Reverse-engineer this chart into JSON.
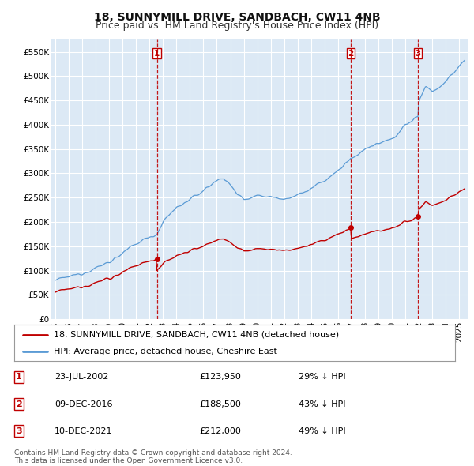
{
  "title": "18, SUNNYMILL DRIVE, SANDBACH, CW11 4NB",
  "subtitle": "Price paid vs. HM Land Registry's House Price Index (HPI)",
  "ylim": [
    0,
    575000
  ],
  "yticks": [
    0,
    50000,
    100000,
    150000,
    200000,
    250000,
    300000,
    350000,
    400000,
    450000,
    500000,
    550000
  ],
  "ytick_labels": [
    "£0",
    "£50K",
    "£100K",
    "£150K",
    "£200K",
    "£250K",
    "£300K",
    "£350K",
    "£400K",
    "£450K",
    "£500K",
    "£550K"
  ],
  "background_color": "#ffffff",
  "plot_bg_color": "#dce9f5",
  "grid_color": "#ffffff",
  "hpi_line_color": "#5b9bd5",
  "hpi_fill_color": "#dce9f5",
  "price_line_color": "#c00000",
  "vline_color": "#c00000",
  "marker_color": "#c00000",
  "xlim_min": 1994.7,
  "xlim_max": 2025.6,
  "transactions": [
    {
      "label": "1",
      "date": 2002.55,
      "price": 123950
    },
    {
      "label": "2",
      "date": 2016.94,
      "price": 188500
    },
    {
      "label": "3",
      "date": 2021.94,
      "price": 212000
    }
  ],
  "legend_entries": [
    "18, SUNNYMILL DRIVE, SANDBACH, CW11 4NB (detached house)",
    "HPI: Average price, detached house, Cheshire East"
  ],
  "table_rows": [
    [
      "1",
      "23-JUL-2002",
      "£123,950",
      "29% ↓ HPI"
    ],
    [
      "2",
      "09-DEC-2016",
      "£188,500",
      "43% ↓ HPI"
    ],
    [
      "3",
      "10-DEC-2021",
      "£212,000",
      "49% ↓ HPI"
    ]
  ],
  "footer": "Contains HM Land Registry data © Crown copyright and database right 2024.\nThis data is licensed under the Open Government Licence v3.0.",
  "title_fontsize": 10,
  "subtitle_fontsize": 9,
  "tick_fontsize": 7.5,
  "legend_fontsize": 8,
  "table_fontsize": 8,
  "footer_fontsize": 6.5
}
